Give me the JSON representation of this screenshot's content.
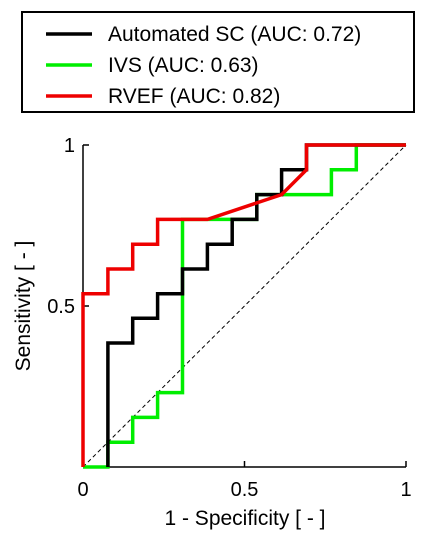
{
  "chart_data": {
    "type": "line",
    "title": "",
    "xlabel": "1 - Specificity [ - ]",
    "ylabel": "Sensitivity [ - ]",
    "xlim": [
      0,
      1
    ],
    "ylim": [
      0,
      1
    ],
    "xticks": [
      {
        "value": 0,
        "label": "0"
      },
      {
        "value": 0.5,
        "label": "0.5"
      },
      {
        "value": 1,
        "label": "1"
      }
    ],
    "yticks": [
      {
        "value": 0.5,
        "label": "0.5"
      },
      {
        "value": 1,
        "label": "1"
      }
    ],
    "grid": false,
    "legend_position": "top",
    "reference_line": {
      "x": [
        0,
        1
      ],
      "y": [
        0,
        1
      ],
      "style": "dashed",
      "color": "#000000"
    },
    "series": [
      {
        "name": "Automated SC (AUC: 0.72)",
        "color": "#000000",
        "x": [
          0.077,
          0.077,
          0.077,
          0.154,
          0.154,
          0.231,
          0.231,
          0.308,
          0.308,
          0.385,
          0.385,
          0.462,
          0.462,
          0.538,
          0.538,
          0.615,
          0.615,
          0.692,
          0.692,
          0.769,
          0.769,
          1.0
        ],
        "y": [
          0.0,
          0.083,
          0.385,
          0.385,
          0.462,
          0.462,
          0.538,
          0.538,
          0.615,
          0.615,
          0.692,
          0.692,
          0.769,
          0.769,
          0.846,
          0.846,
          0.923,
          0.923,
          1.0,
          1.0,
          1.0,
          1.0
        ]
      },
      {
        "name": "IVS (AUC: 0.63)",
        "color": "#00ee00",
        "x": [
          0.0,
          0.077,
          0.077,
          0.154,
          0.154,
          0.231,
          0.231,
          0.308,
          0.308,
          0.308,
          0.538,
          0.538,
          0.769,
          0.769,
          0.846,
          0.846,
          1.0
        ],
        "y": [
          0.0,
          0.0,
          0.077,
          0.077,
          0.154,
          0.154,
          0.231,
          0.231,
          0.769,
          0.769,
          0.769,
          0.846,
          0.846,
          0.923,
          0.923,
          1.0,
          1.0
        ]
      },
      {
        "name": "RVEF (AUC: 0.82)",
        "color": "#ee0000",
        "x": [
          0.0,
          0.0,
          0.077,
          0.077,
          0.154,
          0.154,
          0.231,
          0.231,
          0.308,
          0.308,
          0.385,
          0.615,
          0.615,
          0.692,
          0.692,
          1.0
        ],
        "y": [
          0.0,
          0.538,
          0.538,
          0.615,
          0.615,
          0.692,
          0.692,
          0.769,
          0.769,
          0.769,
          0.769,
          0.846,
          0.846,
          0.923,
          1.0,
          1.0
        ]
      }
    ]
  }
}
